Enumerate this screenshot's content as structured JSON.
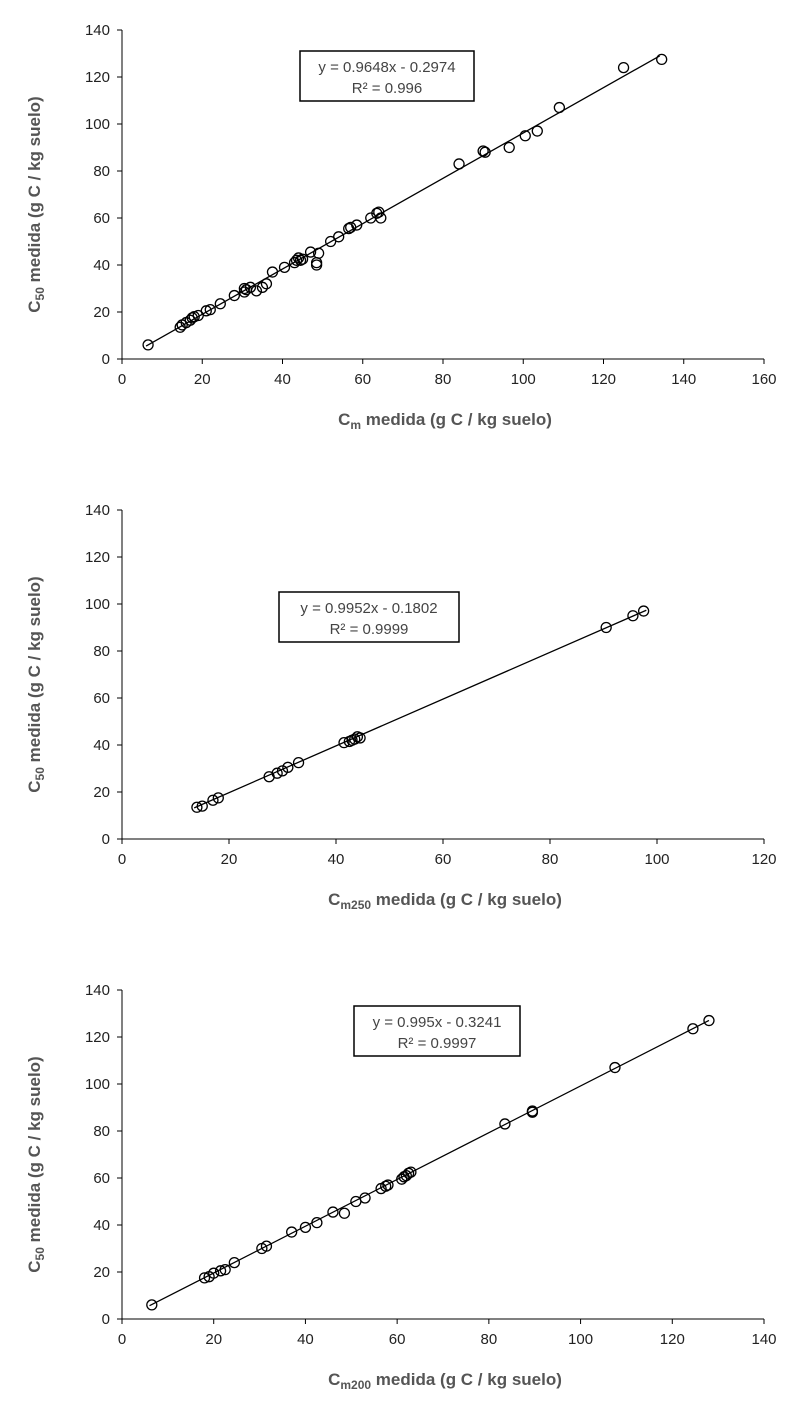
{
  "chart_data": [
    {
      "type": "scatter",
      "xlabel": {
        "main": "C",
        "sub": "m",
        "rest": " medida (g C / kg suelo)"
      },
      "ylabel": {
        "main": "C",
        "sub": "50",
        "rest": " medida  (g C / kg suelo)"
      },
      "xlim": [
        0,
        160
      ],
      "ylim": [
        0,
        140
      ],
      "xticks": [
        0,
        20,
        40,
        60,
        80,
        100,
        120,
        140,
        160
      ],
      "yticks": [
        0,
        20,
        40,
        60,
        80,
        100,
        120,
        140
      ],
      "grid": false,
      "equation": "y = 0.9648x - 0.2974",
      "r2": "R² = 0.996",
      "trendline": {
        "slope": 0.9648,
        "intercept": -0.2974,
        "x_range": [
          6,
          134
        ]
      },
      "points": [
        [
          6.5,
          6
        ],
        [
          14.5,
          13.5
        ],
        [
          15,
          14.5
        ],
        [
          16,
          15.5
        ],
        [
          17,
          16.5
        ],
        [
          17.5,
          17.5
        ],
        [
          18,
          18
        ],
        [
          19,
          18.5
        ],
        [
          21,
          20.5
        ],
        [
          22,
          21
        ],
        [
          24.5,
          23.5
        ],
        [
          28,
          27
        ],
        [
          30.5,
          28.5
        ],
        [
          30.5,
          30
        ],
        [
          31,
          29.5
        ],
        [
          32,
          30.5
        ],
        [
          33.5,
          29
        ],
        [
          35,
          30.5
        ],
        [
          36,
          32
        ],
        [
          37.5,
          37
        ],
        [
          40.5,
          39
        ],
        [
          43,
          41
        ],
        [
          43.5,
          42
        ],
        [
          44,
          43
        ],
        [
          44.5,
          42
        ],
        [
          45,
          42.5
        ],
        [
          47,
          45.5
        ],
        [
          48.5,
          41
        ],
        [
          48.5,
          40
        ],
        [
          49,
          45
        ],
        [
          52,
          50
        ],
        [
          54,
          52
        ],
        [
          56.5,
          55.5
        ],
        [
          57,
          56
        ],
        [
          58.5,
          57
        ],
        [
          62,
          60
        ],
        [
          63.5,
          62
        ],
        [
          64,
          62.5
        ],
        [
          64.5,
          60
        ],
        [
          84,
          83
        ],
        [
          90,
          88.5
        ],
        [
          90.5,
          88
        ],
        [
          96.5,
          90
        ],
        [
          100.5,
          95
        ],
        [
          103.5,
          97
        ],
        [
          109,
          107
        ],
        [
          125,
          124
        ],
        [
          134.5,
          127.5
        ]
      ]
    },
    {
      "type": "scatter",
      "xlabel": {
        "main": "C",
        "sub": "m250",
        "rest": " medida (g C / kg suelo)"
      },
      "ylabel": {
        "main": "C",
        "sub": "50",
        "rest": " medida  (g C / kg suelo)"
      },
      "xlim": [
        0,
        120
      ],
      "ylim": [
        0,
        140
      ],
      "xticks": [
        0,
        20,
        40,
        60,
        80,
        100,
        120
      ],
      "yticks": [
        0,
        20,
        40,
        60,
        80,
        100,
        120,
        140
      ],
      "grid": false,
      "equation": "y = 0.9952x - 0.1802",
      "r2": "R² = 0.9999",
      "trendline": {
        "slope": 0.9952,
        "intercept": -0.1802,
        "x_range": [
          13.5,
          98
        ]
      },
      "points": [
        [
          14,
          13.5
        ],
        [
          15,
          14
        ],
        [
          17,
          16.5
        ],
        [
          18,
          17.5
        ],
        [
          27.5,
          26.5
        ],
        [
          29,
          28
        ],
        [
          30,
          29
        ],
        [
          31,
          30.5
        ],
        [
          33,
          32.5
        ],
        [
          41.5,
          41
        ],
        [
          42.5,
          41.5
        ],
        [
          43,
          42
        ],
        [
          43.5,
          42.5
        ],
        [
          44,
          43.5
        ],
        [
          44.5,
          43
        ],
        [
          90.5,
          90
        ],
        [
          95.5,
          95
        ],
        [
          97.5,
          97
        ]
      ]
    },
    {
      "type": "scatter",
      "xlabel": {
        "main": "C",
        "sub": "m200",
        "rest": " medida (g C / kg suelo)"
      },
      "ylabel": {
        "main": "C",
        "sub": "50",
        "rest": " medida  (g C / kg suelo)"
      },
      "xlim": [
        0,
        140
      ],
      "ylim": [
        0,
        140
      ],
      "xticks": [
        0,
        20,
        40,
        60,
        80,
        100,
        120,
        140
      ],
      "yticks": [
        0,
        20,
        40,
        60,
        80,
        100,
        120,
        140
      ],
      "grid": false,
      "equation": "y = 0.995x - 0.3241",
      "r2": "R² = 0.9997",
      "trendline": {
        "slope": 0.995,
        "intercept": -0.3241,
        "x_range": [
          6,
          128
        ]
      },
      "points": [
        [
          6.5,
          6
        ],
        [
          18,
          17.5
        ],
        [
          19,
          18
        ],
        [
          20,
          19.5
        ],
        [
          21.5,
          20.5
        ],
        [
          22.5,
          21
        ],
        [
          24.5,
          24
        ],
        [
          30.5,
          30
        ],
        [
          31.5,
          31
        ],
        [
          37,
          37
        ],
        [
          40,
          39
        ],
        [
          42.5,
          41
        ],
        [
          46,
          45.5
        ],
        [
          48.5,
          45
        ],
        [
          51,
          50
        ],
        [
          53,
          51.5
        ],
        [
          56.5,
          55.5
        ],
        [
          57.5,
          56.5
        ],
        [
          58,
          57
        ],
        [
          61,
          59.5
        ],
        [
          61.5,
          60.5
        ],
        [
          62,
          61
        ],
        [
          62.5,
          62
        ],
        [
          63,
          62.5
        ],
        [
          83.5,
          83
        ],
        [
          89.5,
          88
        ],
        [
          89.5,
          88.5
        ],
        [
          107.5,
          107
        ],
        [
          124.5,
          123.5
        ],
        [
          128,
          127
        ]
      ]
    }
  ]
}
